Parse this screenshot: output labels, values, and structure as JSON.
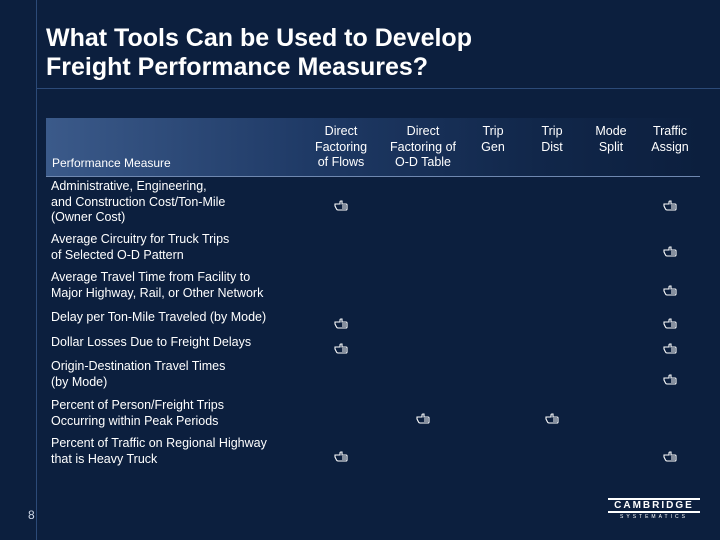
{
  "title": "What Tools Can be Used to Develop\nFreight Performance Measures?",
  "table": {
    "measure_header": "Performance Measure",
    "columns": [
      {
        "key": "direct_flows",
        "label": "Direct\nFactoring\nof Flows"
      },
      {
        "key": "direct_od",
        "label": "Direct\nFactoring of\nO-D Table"
      },
      {
        "key": "trip_gen",
        "label": "Trip\nGen"
      },
      {
        "key": "trip_dist",
        "label": "Trip\nDist"
      },
      {
        "key": "mode_split",
        "label": "Mode\nSplit"
      },
      {
        "key": "traffic_assign",
        "label": "Traffic\nAssign"
      }
    ],
    "rows": [
      {
        "label": "Administrative, Engineering,\nand Construction Cost/Ton-Mile\n(Owner Cost)",
        "marks": [
          "direct_flows",
          "traffic_assign"
        ]
      },
      {
        "label": "Average Circuitry for Truck Trips\nof Selected O-D Pattern",
        "marks": [
          "traffic_assign"
        ]
      },
      {
        "label": "Average Travel Time from Facility to\nMajor Highway, Rail, or Other Network",
        "marks": [
          "traffic_assign"
        ]
      },
      {
        "label": "Delay per Ton-Mile Traveled (by Mode)",
        "marks": [
          "direct_flows",
          "traffic_assign"
        ]
      },
      {
        "label": "Dollar Losses Due to Freight Delays",
        "marks": [
          "direct_flows",
          "traffic_assign"
        ]
      },
      {
        "label": "Origin-Destination Travel Times\n(by Mode)",
        "marks": [
          "traffic_assign"
        ]
      },
      {
        "label": "Percent of Person/Freight Trips\nOccurring within Peak Periods",
        "marks": [
          "direct_od",
          "trip_dist"
        ]
      },
      {
        "label": "Percent of Traffic on Regional Highway\nthat is Heavy Truck",
        "marks": [
          "direct_flows",
          "traffic_assign"
        ]
      }
    ]
  },
  "mark_icon": "pointing-hand-icon",
  "page_number": "8",
  "logo": {
    "name": "CAMBRIDGE",
    "sub": "SYSTEMATICS"
  }
}
